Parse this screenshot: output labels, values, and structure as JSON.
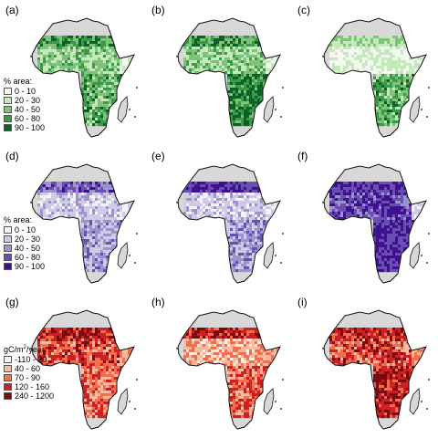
{
  "panels": [
    {
      "label": "(a)",
      "palette": "green"
    },
    {
      "label": "(b)",
      "palette": "green"
    },
    {
      "label": "(c)",
      "palette": "green"
    },
    {
      "label": "(d)",
      "palette": "purple"
    },
    {
      "label": "(e)",
      "palette": "purple"
    },
    {
      "label": "(f)",
      "palette": "purple"
    },
    {
      "label": "(g)",
      "palette": "red"
    },
    {
      "label": "(h)",
      "palette": "red"
    },
    {
      "label": "(i)",
      "palette": "red"
    }
  ],
  "legends": {
    "green": {
      "title": "% area:",
      "items": [
        {
          "label": "0 - 10",
          "color": "#f4faf1"
        },
        {
          "label": "20 - 30",
          "color": "#c6e8bd"
        },
        {
          "label": "40 - 50",
          "color": "#7fc37a"
        },
        {
          "label": "60 - 80",
          "color": "#3a9a48"
        },
        {
          "label": "90 - 100",
          "color": "#0b6128"
        }
      ]
    },
    "purple": {
      "title": "% area:",
      "items": [
        {
          "label": "0 - 10",
          "color": "#f5f3fa"
        },
        {
          "label": "20 - 30",
          "color": "#cfcbe6"
        },
        {
          "label": "40 - 50",
          "color": "#9c94cc"
        },
        {
          "label": "60 - 80",
          "color": "#6a4fb2"
        },
        {
          "label": "90 - 100",
          "color": "#3f118f"
        }
      ]
    },
    "red": {
      "title_prefix": "gC/m",
      "title_sup": "2",
      "title_suffix": "/year:",
      "items": [
        {
          "label": "-110 - 20",
          "color": "#fdf0ea"
        },
        {
          "label": "40 - 60",
          "color": "#fcbba1"
        },
        {
          "label": "70 - 90",
          "color": "#f66d4b"
        },
        {
          "label": "120 - 160",
          "color": "#cd2024"
        },
        {
          "label": "240 - 1200",
          "color": "#7a0a10"
        }
      ]
    }
  },
  "colors": {
    "land": "#d8d8d8",
    "outline": "#111111",
    "green": [
      "#f4faf1",
      "#c6e8bd",
      "#7fc37a",
      "#3a9a48",
      "#0b6128"
    ],
    "purple": [
      "#f5f3fa",
      "#cfcbe6",
      "#9c94cc",
      "#6a4fb2",
      "#3f118f"
    ],
    "red": [
      "#fdf0ea",
      "#fcbba1",
      "#f66d4b",
      "#cd2024",
      "#7a0a10"
    ]
  }
}
